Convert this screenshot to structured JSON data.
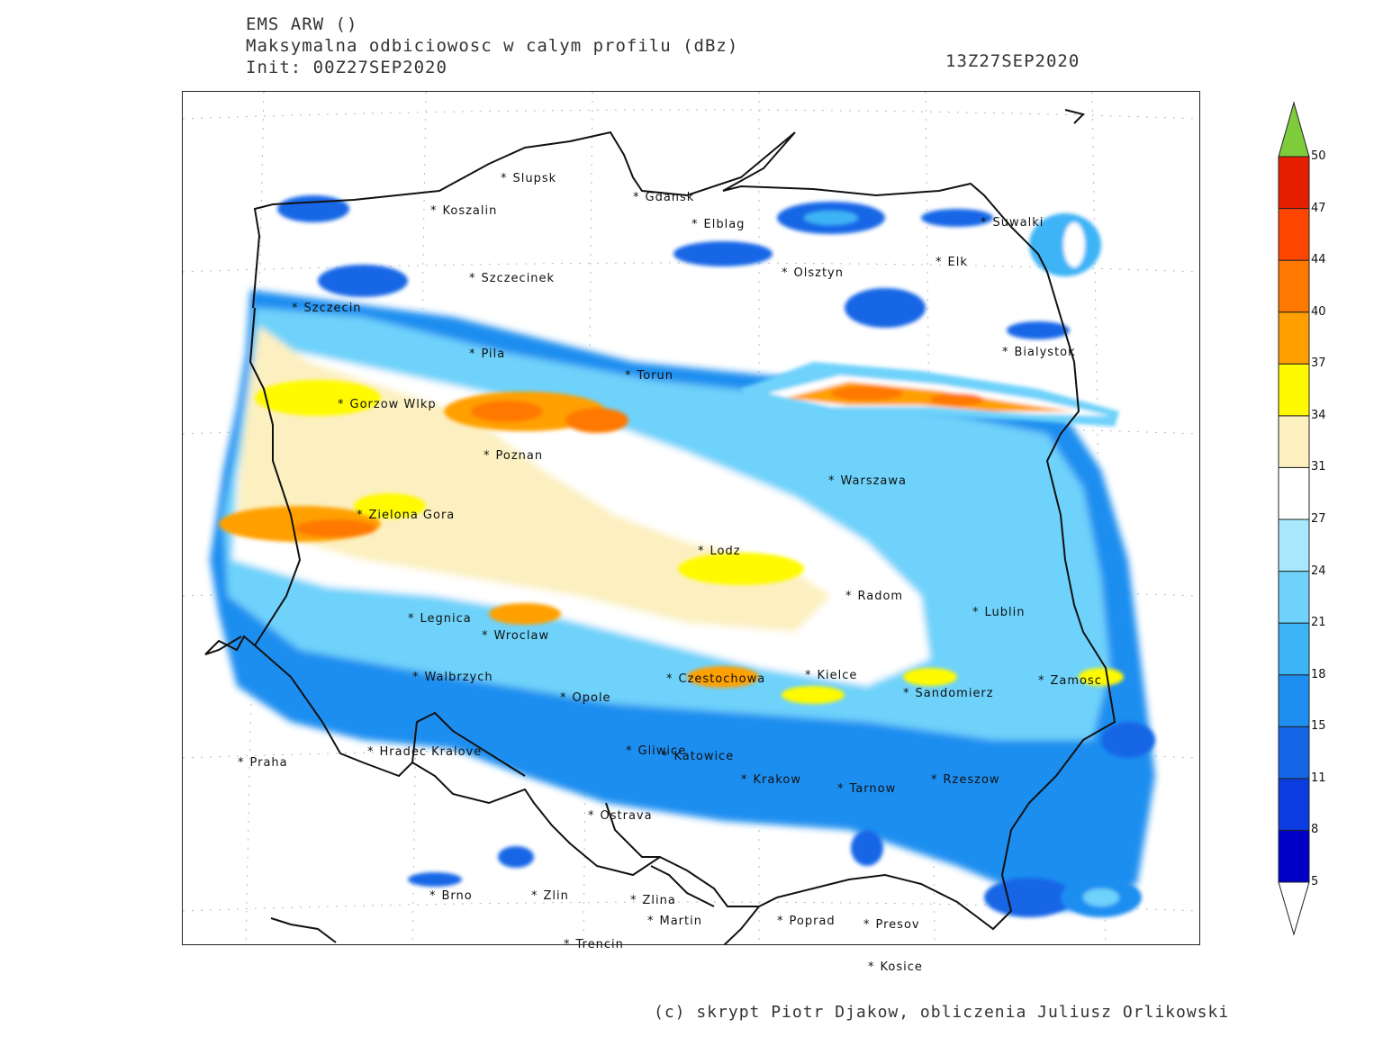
{
  "header": {
    "model": "EMS ARW ()",
    "field": "Maksymalna odbiciowosc w calym profilu (dBz)",
    "init": "Init: 00Z27SEP2020",
    "valid": "13Z27SEP2020"
  },
  "legend": {
    "labels": [
      "50",
      "47",
      "44",
      "40",
      "37",
      "34",
      "31",
      "27",
      "24",
      "21",
      "18",
      "15",
      "11",
      "8",
      "5"
    ],
    "colors": [
      "#0000c8",
      "#0a3ce0",
      "#1466e6",
      "#1e8ef0",
      "#3cb4f6",
      "#6ed2fa",
      "#a8e8fc",
      "#ffffff",
      "#fcf0c0",
      "#fffa00",
      "#ffa000",
      "#ff7800",
      "#ff4600",
      "#e61e00",
      "#c80000"
    ],
    "overflow_color": "#7ecc3c",
    "underflow_color": "#ffffff"
  },
  "cities": [
    {
      "name": "Slupsk"
    },
    {
      "name": "Koszalin"
    },
    {
      "name": "Gdansk"
    },
    {
      "name": "Elblag"
    },
    {
      "name": "Suwalki"
    },
    {
      "name": "Elk"
    },
    {
      "name": "Olsztyn"
    },
    {
      "name": "Szczecinek"
    },
    {
      "name": "Szczecin"
    },
    {
      "name": "Bialystok"
    },
    {
      "name": "Pila"
    },
    {
      "name": "Torun"
    },
    {
      "name": "Gorzow Wlkp"
    },
    {
      "name": "Poznan"
    },
    {
      "name": "Warszawa"
    },
    {
      "name": "Zielona Gora"
    },
    {
      "name": "Lodz"
    },
    {
      "name": "Radom"
    },
    {
      "name": "Lublin"
    },
    {
      "name": "Legnica"
    },
    {
      "name": "Wroclaw"
    },
    {
      "name": "Walbrzych"
    },
    {
      "name": "Czestochowa"
    },
    {
      "name": "Kielce"
    },
    {
      "name": "Zamosc"
    },
    {
      "name": "Opole"
    },
    {
      "name": "Sandomierz"
    },
    {
      "name": "Hradec Kralove"
    },
    {
      "name": "Gliwice"
    },
    {
      "name": "Katowice"
    },
    {
      "name": "Praha"
    },
    {
      "name": "Krakow"
    },
    {
      "name": "Tarnow"
    },
    {
      "name": "Rzeszow"
    },
    {
      "name": "Ostrava"
    },
    {
      "name": "Brno"
    },
    {
      "name": "Zlin"
    },
    {
      "name": "Zlina"
    },
    {
      "name": "Martin"
    },
    {
      "name": "Poprad"
    },
    {
      "name": "Presov"
    },
    {
      "name": "Trencin"
    },
    {
      "name": "Kosice"
    }
  ],
  "credit": "(c) skrypt Piotr Djakow, obliczenia Juliusz Orlikowski"
}
